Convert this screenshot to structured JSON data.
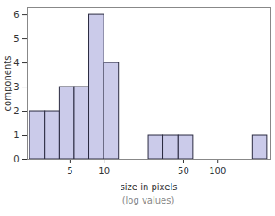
{
  "chart_data": {
    "type": "histogram",
    "xlabel": "size in pixels",
    "ylabel": "components",
    "annotations": [
      "(log values)"
    ],
    "bins": [
      2.22,
      3.0,
      4.06,
      5.48,
      7.4,
      10.0,
      13.5,
      18.2,
      24.7,
      33.3,
      45.1,
      60.9,
      82.2,
      111,
      150,
      203,
      274
    ],
    "values": [
      2,
      2,
      3,
      3,
      6,
      4,
      0,
      0,
      1,
      1,
      1,
      0,
      0,
      0,
      0,
      1
    ],
    "color": "#cbcbea",
    "log": "x",
    "xlim": [
      2.1,
      290
    ],
    "xticks": [
      5,
      10,
      50,
      100
    ],
    "ylim": [
      0,
      6.3
    ],
    "yticks": [
      0,
      1,
      2,
      3,
      4,
      5,
      6
    ],
    "grid": false
  }
}
